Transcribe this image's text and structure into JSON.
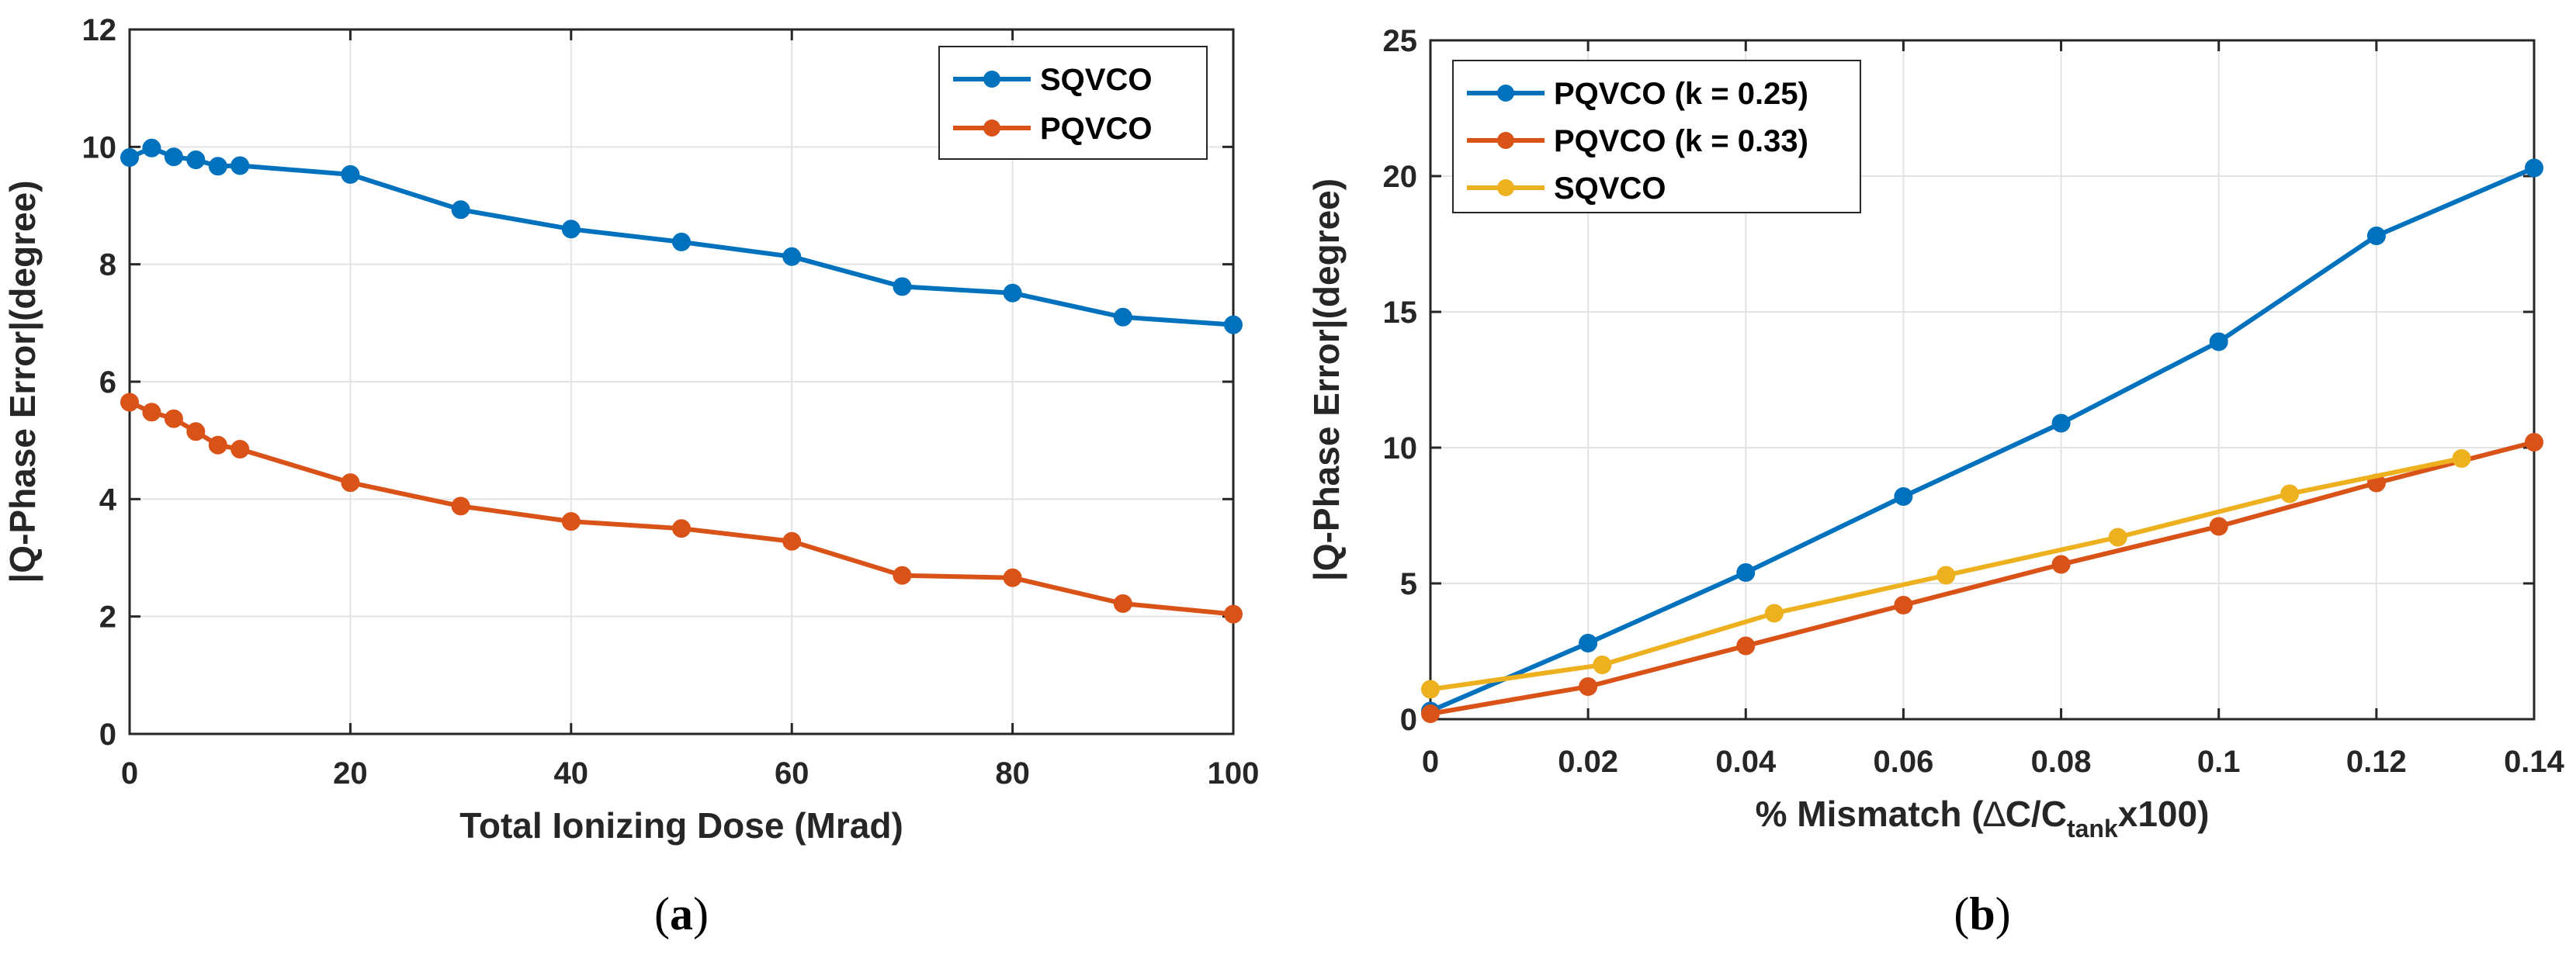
{
  "chart_data": [
    {
      "type": "line",
      "panel_caption": "(a)",
      "xlabel": "Total Ionizing Dose (Mrad)",
      "ylabel": "|Q-Phase Error|(degree)",
      "xlim": [
        0,
        100
      ],
      "ylim": [
        0,
        12
      ],
      "xticks": [
        0,
        20,
        40,
        60,
        80,
        100
      ],
      "yticks": [
        0,
        2,
        4,
        6,
        8,
        10,
        12
      ],
      "grid": true,
      "legend_position": "top-right",
      "series": [
        {
          "name": "SQVCO",
          "color": "#0072BD",
          "x": [
            0,
            2,
            4,
            6,
            8,
            10,
            20,
            30,
            40,
            50,
            60,
            70,
            80,
            90,
            100
          ],
          "y": [
            9.82,
            9.98,
            9.83,
            9.78,
            9.67,
            9.68,
            9.53,
            8.93,
            8.6,
            8.38,
            8.13,
            7.62,
            7.51,
            7.1,
            6.97
          ]
        },
        {
          "name": "PQVCO",
          "color": "#D95319",
          "x": [
            0,
            2,
            4,
            6,
            8,
            10,
            20,
            30,
            40,
            50,
            60,
            70,
            80,
            90,
            100
          ],
          "y": [
            5.65,
            5.48,
            5.37,
            5.15,
            4.92,
            4.85,
            4.28,
            3.88,
            3.62,
            3.5,
            3.28,
            2.7,
            2.66,
            2.22,
            2.04
          ]
        }
      ]
    },
    {
      "type": "line",
      "panel_caption": "(b)",
      "xlabel_prefix": "% Mismatch (",
      "xlabel_delta": "∆",
      "xlabel_mid": "C/C",
      "xlabel_sub": "tank",
      "xlabel_suffix": "x100)",
      "ylabel": "|Q-Phase Error|(degree)",
      "xlim": [
        0,
        0.14
      ],
      "ylim": [
        0,
        25
      ],
      "xticks": [
        0,
        0.02,
        0.04,
        0.06,
        0.08,
        0.1,
        0.12,
        0.14
      ],
      "xtick_labels": [
        "0",
        "0.02",
        "0.04",
        "0.06",
        "0.08",
        "0.1",
        "0.12",
        "0.14"
      ],
      "yticks": [
        0,
        5,
        10,
        15,
        20,
        25
      ],
      "grid": true,
      "legend_position": "top-left",
      "series": [
        {
          "name": "PQVCO (k = 0.25)",
          "color": "#0072BD",
          "x": [
            0,
            0.02,
            0.04,
            0.06,
            0.08,
            0.1,
            0.12,
            0.14
          ],
          "y": [
            0.3,
            2.8,
            5.4,
            8.2,
            10.9,
            13.9,
            17.8,
            20.3
          ]
        },
        {
          "name": "PQVCO (k = 0.33)",
          "color": "#D95319",
          "x": [
            0,
            0.02,
            0.04,
            0.06,
            0.08,
            0.1,
            0.12,
            0.14
          ],
          "y": [
            0.2,
            1.2,
            2.7,
            4.2,
            5.7,
            7.1,
            8.7,
            10.2
          ]
        },
        {
          "name": "SQVCO",
          "color": "#EDB120",
          "x": [
            0,
            0.0218,
            0.0436,
            0.0654,
            0.0872,
            0.109,
            0.1308
          ],
          "y": [
            1.1,
            2.0,
            3.9,
            5.3,
            6.7,
            8.3,
            9.6
          ]
        }
      ]
    }
  ]
}
